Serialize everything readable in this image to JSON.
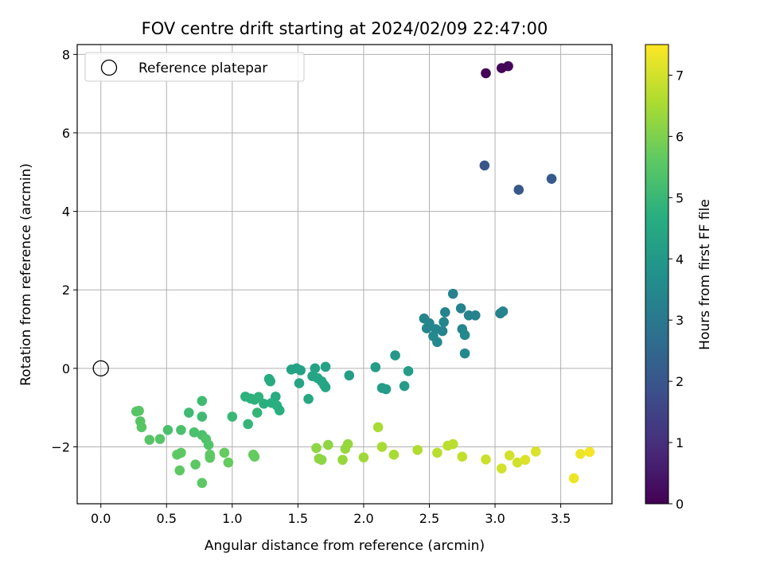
{
  "chart_data": {
    "type": "scatter",
    "title": "FOV centre drift starting at 2024/02/09 22:47:00",
    "xlabel": "Angular distance from reference (arcmin)",
    "ylabel": "Rotation from reference (arcmin)",
    "xlim": [
      -0.18,
      3.89
    ],
    "ylim": [
      -3.45,
      8.25
    ],
    "xticks": [
      "0.0",
      "0.5",
      "1.0",
      "1.5",
      "2.0",
      "2.5",
      "3.0",
      "3.5"
    ],
    "yticks": [
      "−2",
      "0",
      "2",
      "4",
      "6",
      "8"
    ],
    "grid": true,
    "legend": {
      "location": "upper-left",
      "entries": [
        "Reference platepar"
      ]
    },
    "reference_point": {
      "x": 0.0,
      "y": 0.0
    },
    "colorbar": {
      "label": "Hours from first FF file",
      "colormap": "viridis",
      "range": [
        0,
        7.5
      ],
      "ticks": [
        "0",
        "1",
        "2",
        "3",
        "4",
        "5",
        "6",
        "7"
      ]
    },
    "points": [
      {
        "x": 2.93,
        "y": 7.52,
        "c": 0.05
      },
      {
        "x": 3.05,
        "y": 7.65,
        "c": 0.1
      },
      {
        "x": 3.1,
        "y": 7.7,
        "c": 0.15
      },
      {
        "x": 2.92,
        "y": 5.17,
        "c": 2.0
      },
      {
        "x": 3.18,
        "y": 4.55,
        "c": 2.05
      },
      {
        "x": 3.43,
        "y": 4.83,
        "c": 2.1
      },
      {
        "x": 2.68,
        "y": 1.9,
        "c": 3.3
      },
      {
        "x": 2.62,
        "y": 1.43,
        "c": 3.3
      },
      {
        "x": 2.74,
        "y": 1.53,
        "c": 3.3
      },
      {
        "x": 2.8,
        "y": 1.35,
        "c": 3.3
      },
      {
        "x": 2.85,
        "y": 1.35,
        "c": 3.3
      },
      {
        "x": 3.04,
        "y": 1.4,
        "c": 3.3
      },
      {
        "x": 3.06,
        "y": 1.45,
        "c": 3.3
      },
      {
        "x": 2.46,
        "y": 1.27,
        "c": 3.4
      },
      {
        "x": 2.5,
        "y": 1.15,
        "c": 3.4
      },
      {
        "x": 2.48,
        "y": 1.02,
        "c": 3.4
      },
      {
        "x": 2.55,
        "y": 1.0,
        "c": 3.4
      },
      {
        "x": 2.61,
        "y": 1.18,
        "c": 3.4
      },
      {
        "x": 2.6,
        "y": 0.95,
        "c": 3.4
      },
      {
        "x": 2.53,
        "y": 0.82,
        "c": 3.5
      },
      {
        "x": 2.56,
        "y": 0.67,
        "c": 3.5
      },
      {
        "x": 2.75,
        "y": 1.0,
        "c": 3.4
      },
      {
        "x": 2.77,
        "y": 0.85,
        "c": 3.5
      },
      {
        "x": 2.77,
        "y": 0.38,
        "c": 3.5
      },
      {
        "x": 2.24,
        "y": 0.33,
        "c": 4.0
      },
      {
        "x": 2.09,
        "y": 0.03,
        "c": 4.1
      },
      {
        "x": 2.34,
        "y": -0.07,
        "c": 4.1
      },
      {
        "x": 2.14,
        "y": -0.5,
        "c": 4.1
      },
      {
        "x": 2.17,
        "y": -0.53,
        "c": 4.1
      },
      {
        "x": 2.31,
        "y": -0.45,
        "c": 4.1
      },
      {
        "x": 1.89,
        "y": -0.18,
        "c": 4.2
      },
      {
        "x": 1.45,
        "y": -0.03,
        "c": 4.3
      },
      {
        "x": 1.49,
        "y": 0.0,
        "c": 4.3
      },
      {
        "x": 1.52,
        "y": -0.05,
        "c": 4.3
      },
      {
        "x": 1.63,
        "y": 0.0,
        "c": 4.3
      },
      {
        "x": 1.71,
        "y": 0.04,
        "c": 4.3
      },
      {
        "x": 1.61,
        "y": -0.2,
        "c": 4.4
      },
      {
        "x": 1.65,
        "y": -0.25,
        "c": 4.4
      },
      {
        "x": 1.68,
        "y": -0.33,
        "c": 4.4
      },
      {
        "x": 1.7,
        "y": -0.43,
        "c": 4.4
      },
      {
        "x": 1.71,
        "y": -0.48,
        "c": 4.4
      },
      {
        "x": 1.51,
        "y": -0.38,
        "c": 4.4
      },
      {
        "x": 1.58,
        "y": -0.78,
        "c": 4.5
      },
      {
        "x": 1.28,
        "y": -0.27,
        "c": 4.6
      },
      {
        "x": 1.29,
        "y": -0.33,
        "c": 4.6
      },
      {
        "x": 1.33,
        "y": -0.72,
        "c": 4.6
      },
      {
        "x": 1.34,
        "y": -0.95,
        "c": 4.7
      },
      {
        "x": 1.36,
        "y": -1.07,
        "c": 4.7
      },
      {
        "x": 1.3,
        "y": -0.88,
        "c": 4.7
      },
      {
        "x": 1.24,
        "y": -0.9,
        "c": 4.7
      },
      {
        "x": 1.1,
        "y": -0.72,
        "c": 4.8
      },
      {
        "x": 1.14,
        "y": -0.77,
        "c": 4.8
      },
      {
        "x": 1.17,
        "y": -0.8,
        "c": 4.8
      },
      {
        "x": 1.2,
        "y": -0.73,
        "c": 4.8
      },
      {
        "x": 1.19,
        "y": -1.13,
        "c": 4.9
      },
      {
        "x": 1.12,
        "y": -1.42,
        "c": 4.9
      },
      {
        "x": 1.0,
        "y": -1.23,
        "c": 5.0
      },
      {
        "x": 0.77,
        "y": -0.83,
        "c": 5.1
      },
      {
        "x": 0.67,
        "y": -1.13,
        "c": 5.1
      },
      {
        "x": 0.77,
        "y": -1.23,
        "c": 5.1
      },
      {
        "x": 0.51,
        "y": -1.57,
        "c": 5.3
      },
      {
        "x": 0.61,
        "y": -1.57,
        "c": 5.3
      },
      {
        "x": 0.71,
        "y": -1.63,
        "c": 5.3
      },
      {
        "x": 0.77,
        "y": -1.7,
        "c": 5.3
      },
      {
        "x": 0.8,
        "y": -1.8,
        "c": 5.4
      },
      {
        "x": 0.82,
        "y": -1.95,
        "c": 5.4
      },
      {
        "x": 0.27,
        "y": -1.1,
        "c": 5.5
      },
      {
        "x": 0.29,
        "y": -1.08,
        "c": 5.5
      },
      {
        "x": 0.3,
        "y": -1.35,
        "c": 5.5
      },
      {
        "x": 0.31,
        "y": -1.5,
        "c": 5.5
      },
      {
        "x": 0.37,
        "y": -1.82,
        "c": 5.5
      },
      {
        "x": 0.45,
        "y": -1.8,
        "c": 5.5
      },
      {
        "x": 0.58,
        "y": -2.2,
        "c": 5.6
      },
      {
        "x": 0.61,
        "y": -2.15,
        "c": 5.6
      },
      {
        "x": 0.6,
        "y": -2.6,
        "c": 5.6
      },
      {
        "x": 0.72,
        "y": -2.45,
        "c": 5.6
      },
      {
        "x": 0.77,
        "y": -2.92,
        "c": 5.6
      },
      {
        "x": 0.83,
        "y": -2.2,
        "c": 5.6
      },
      {
        "x": 0.83,
        "y": -2.28,
        "c": 5.6
      },
      {
        "x": 0.94,
        "y": -2.15,
        "c": 5.7
      },
      {
        "x": 0.97,
        "y": -2.4,
        "c": 5.7
      },
      {
        "x": 1.16,
        "y": -2.2,
        "c": 5.7
      },
      {
        "x": 1.17,
        "y": -2.25,
        "c": 5.7
      },
      {
        "x": 1.64,
        "y": -2.03,
        "c": 6.2
      },
      {
        "x": 1.66,
        "y": -2.3,
        "c": 6.2
      },
      {
        "x": 1.68,
        "y": -2.33,
        "c": 6.2
      },
      {
        "x": 1.73,
        "y": -1.95,
        "c": 6.2
      },
      {
        "x": 1.84,
        "y": -2.33,
        "c": 6.3
      },
      {
        "x": 1.86,
        "y": -2.05,
        "c": 6.3
      },
      {
        "x": 1.88,
        "y": -1.93,
        "c": 6.3
      },
      {
        "x": 2.0,
        "y": -2.27,
        "c": 6.4
      },
      {
        "x": 2.11,
        "y": -1.5,
        "c": 6.5
      },
      {
        "x": 2.14,
        "y": -2.0,
        "c": 6.5
      },
      {
        "x": 2.23,
        "y": -2.2,
        "c": 6.5
      },
      {
        "x": 2.41,
        "y": -2.08,
        "c": 6.6
      },
      {
        "x": 2.56,
        "y": -2.15,
        "c": 6.7
      },
      {
        "x": 2.64,
        "y": -1.97,
        "c": 6.7
      },
      {
        "x": 2.68,
        "y": -1.93,
        "c": 6.7
      },
      {
        "x": 2.75,
        "y": -2.25,
        "c": 6.8
      },
      {
        "x": 2.93,
        "y": -2.32,
        "c": 6.9
      },
      {
        "x": 3.05,
        "y": -2.55,
        "c": 7.0
      },
      {
        "x": 3.11,
        "y": -2.22,
        "c": 7.0
      },
      {
        "x": 3.17,
        "y": -2.4,
        "c": 7.0
      },
      {
        "x": 3.23,
        "y": -2.33,
        "c": 7.1
      },
      {
        "x": 3.31,
        "y": -2.12,
        "c": 7.1
      },
      {
        "x": 3.6,
        "y": -2.8,
        "c": 7.3
      },
      {
        "x": 3.65,
        "y": -2.18,
        "c": 7.3
      },
      {
        "x": 3.72,
        "y": -2.13,
        "c": 7.4
      }
    ]
  }
}
